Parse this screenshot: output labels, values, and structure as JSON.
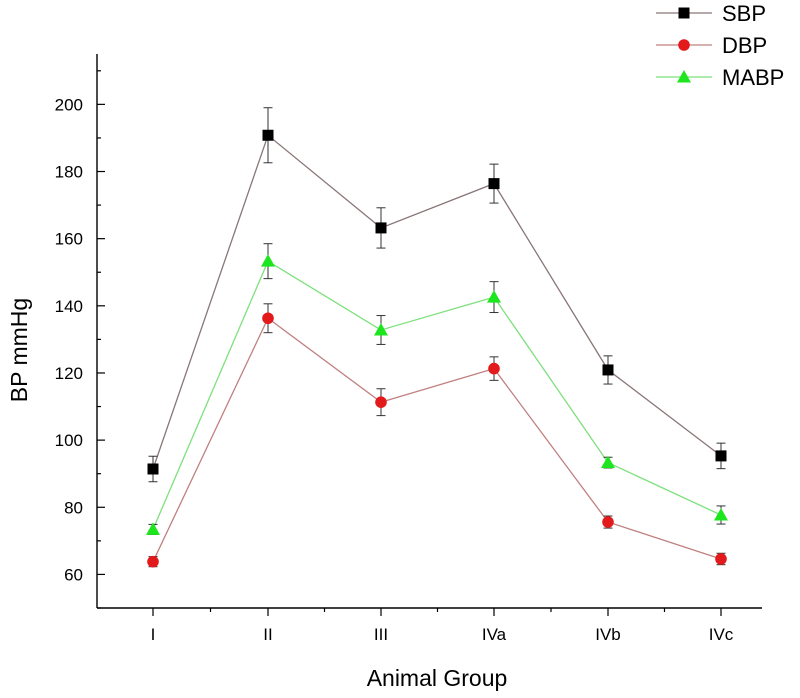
{
  "chart_data": {
    "type": "line",
    "title": "",
    "xlabel": "Animal Group",
    "ylabel": "BP mmHg",
    "ylim": [
      50,
      215
    ],
    "yticks": [
      60,
      80,
      100,
      120,
      140,
      160,
      180,
      200
    ],
    "categories": [
      "I",
      "II",
      "III",
      "IVa",
      "IVb",
      "IVc"
    ],
    "legend_position": "top-right",
    "grid": false,
    "series": [
      {
        "name": "SBP",
        "marker": "square",
        "marker_color": "#000000",
        "line_color": "#8a7676",
        "values": [
          91.4,
          190.8,
          163.2,
          176.4,
          120.9,
          95.3
        ],
        "errors": [
          3.8,
          8.2,
          6.0,
          5.8,
          4.2,
          3.8
        ]
      },
      {
        "name": "DBP",
        "marker": "circle",
        "marker_color": "#e31a1c",
        "line_color": "#c08080",
        "values": [
          63.8,
          136.3,
          111.3,
          121.3,
          75.6,
          64.6
        ],
        "errors": [
          1.5,
          4.3,
          4.0,
          3.5,
          1.8,
          1.7
        ]
      },
      {
        "name": "MABP",
        "marker": "triangle",
        "marker_color": "#1ee61e",
        "line_color": "#7de07d",
        "values": [
          73.4,
          153.3,
          132.8,
          142.6,
          93.3,
          77.7
        ],
        "errors": [
          1.5,
          5.2,
          4.3,
          4.6,
          1.6,
          2.7
        ]
      }
    ]
  }
}
